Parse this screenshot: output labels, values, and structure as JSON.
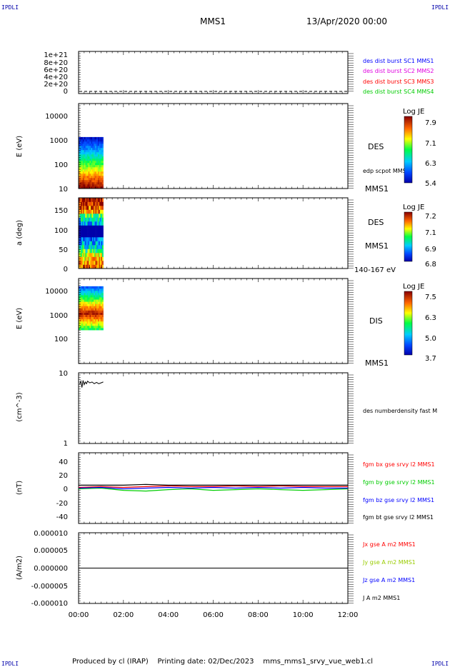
{
  "corner_label": "IPDLI",
  "header": {
    "spacecraft": "MMS1",
    "date": "13/Apr/2020 00:00"
  },
  "footer": "Produced by cl (IRAP)    Printing date: 02/Dec/2023    mms_mms1_srvy_vue_web1.cl",
  "x_axis": {
    "ticks": [
      "00:00",
      "02:00",
      "04:00",
      "06:00",
      "08:00",
      "10:00",
      "12:00"
    ],
    "range_hours": [
      0,
      12
    ]
  },
  "colors": {
    "series_blue": "#0000ff",
    "series_magenta": "#e000e0",
    "series_red": "#ff0000",
    "series_green": "#00cc00",
    "series_black": "#000000",
    "series_yellowgreen": "#99cc00"
  },
  "chart_data": [
    {
      "id": "burst-flags",
      "type": "line",
      "y_ticks": [
        "1e+21",
        "8e+20",
        "6e+20",
        "4e+20",
        "2e+20",
        "0"
      ],
      "ylim": [
        0,
        1.1e+21
      ],
      "legend": [
        "des dist burst SC1 MMS1",
        "des dist burst SC2 MMS2",
        "des dist burst SC3 MMS3",
        "des dist burst SC4 MMS4"
      ],
      "legend_colors": [
        "#0000ff",
        "#e000e0",
        "#ff0000",
        "#00cc00"
      ]
    },
    {
      "id": "des-energy",
      "type": "heatmap",
      "ylabel": "E (eV)",
      "y_scale": "log",
      "ylim": [
        10,
        20000
      ],
      "y_ticks": [
        "10000",
        "1000",
        "100",
        "10"
      ],
      "instrument": "DES",
      "right_note": "edp scpot MMS1",
      "bottom_label": "MMS1",
      "colorbar": {
        "title": "Log JE",
        "ticks": [
          "7.9",
          "7.1",
          "6.3",
          "5.4"
        ]
      },
      "data_time_range_hours": [
        0,
        1.1
      ]
    },
    {
      "id": "des-pitch",
      "type": "heatmap",
      "ylabel": "a (deg)",
      "ylim": [
        0,
        180
      ],
      "y_ticks": [
        "150",
        "100",
        "50",
        "0"
      ],
      "instrument": "DES",
      "spacecraft": "MMS1",
      "energy_range": "140-167 eV",
      "colorbar": {
        "title": "Log JE",
        "ticks": [
          "7.2",
          "7.1",
          "6.9",
          "6.8"
        ]
      },
      "data_time_range_hours": [
        0,
        1.1
      ]
    },
    {
      "id": "dis-energy",
      "type": "heatmap",
      "ylabel": "E (eV)",
      "y_scale": "log",
      "ylim": [
        10,
        20000
      ],
      "y_ticks": [
        "10000",
        "1000",
        "100"
      ],
      "instrument": "DIS",
      "bottom_label": "MMS1",
      "colorbar": {
        "title": "Log JE",
        "ticks": [
          "7.5",
          "6.3",
          "5.0",
          "3.7"
        ]
      },
      "data_time_range_hours": [
        0,
        1.1
      ]
    },
    {
      "id": "density",
      "type": "line",
      "ylabel": "(cm^-3)",
      "y_scale": "log",
      "ylim": [
        1,
        10
      ],
      "y_ticks": [
        "10",
        "1"
      ],
      "legend": [
        "des numberdensity fast M"
      ],
      "series": [
        {
          "x": [
            0.05,
            0.1,
            0.15,
            0.2,
            0.25,
            0.3,
            0.35,
            0.4,
            0.5,
            0.6,
            0.7,
            0.8,
            0.9,
            1.0,
            1.1
          ],
          "y": [
            6.9,
            7.6,
            6.2,
            7.8,
            6.8,
            7.4,
            7.0,
            7.6,
            7.2,
            7.4,
            7.0,
            7.3,
            7.0,
            7.2,
            7.4
          ]
        }
      ]
    },
    {
      "id": "fgm-b",
      "type": "line",
      "ylabel": "(nT)",
      "ylim": [
        -48,
        48
      ],
      "y_ticks": [
        "40",
        "20",
        "0",
        "-20",
        "-40"
      ],
      "legend": [
        "fgm bx gse srvy l2 MMS1",
        "fgm by gse srvy l2 MMS1",
        "fgm bz gse srvy l2 MMS1",
        "fgm bt gse srvy l2 MMS1"
      ],
      "legend_colors": [
        "#ff0000",
        "#00cc00",
        "#0000ff",
        "#000000"
      ],
      "series": [
        {
          "name": "fgm bx gse srvy l2 MMS1",
          "x": [
            0,
            1,
            2,
            3,
            4,
            5,
            6,
            7,
            8,
            9,
            10,
            11,
            12
          ],
          "y": [
            1,
            2,
            1,
            2,
            3,
            2,
            2,
            3,
            2,
            3,
            2,
            2,
            2
          ]
        },
        {
          "name": "fgm by gse srvy l2 MMS1",
          "x": [
            0,
            1,
            2,
            3,
            4,
            5,
            6,
            7,
            8,
            9,
            10,
            11,
            12
          ],
          "y": [
            -1,
            0,
            -3,
            -4,
            -2,
            -1,
            -3,
            -2,
            -1,
            -2,
            -3,
            -2,
            -1
          ]
        },
        {
          "name": "fgm bz gse srvy l2 MMS1",
          "x": [
            0,
            1,
            2,
            3,
            4,
            5,
            6,
            7,
            8,
            9,
            10,
            11,
            12
          ],
          "y": [
            0,
            1,
            -1,
            0,
            1,
            0,
            1,
            0,
            1,
            0,
            1,
            0,
            0
          ]
        },
        {
          "name": "fgm bt gse srvy l2 MMS1",
          "x": [
            0,
            1,
            2,
            3,
            4,
            5,
            6,
            7,
            8,
            9,
            10,
            11,
            12
          ],
          "y": [
            4,
            4,
            4,
            5,
            4,
            4,
            4,
            4,
            4,
            4,
            4,
            4,
            4
          ]
        }
      ]
    },
    {
      "id": "current",
      "type": "line",
      "ylabel": "(A/m2)",
      "ylim": [
        -1e-05,
        1e-05
      ],
      "y_ticks": [
        "0.000010",
        "0.000005",
        "0.000000",
        "-0.000005",
        "-0.000010"
      ],
      "legend": [
        "Jx gse A m2 MMS1",
        "Jy gse A m2 MMS1",
        "Jz gse A m2 MMS1",
        "J A m2 MMS1"
      ],
      "legend_colors": [
        "#ff0000",
        "#99cc00",
        "#0000ff",
        "#000000"
      ],
      "series": [
        {
          "name": "J A m2 MMS1",
          "x": [
            0,
            12
          ],
          "y": [
            0,
            0
          ]
        }
      ]
    }
  ]
}
